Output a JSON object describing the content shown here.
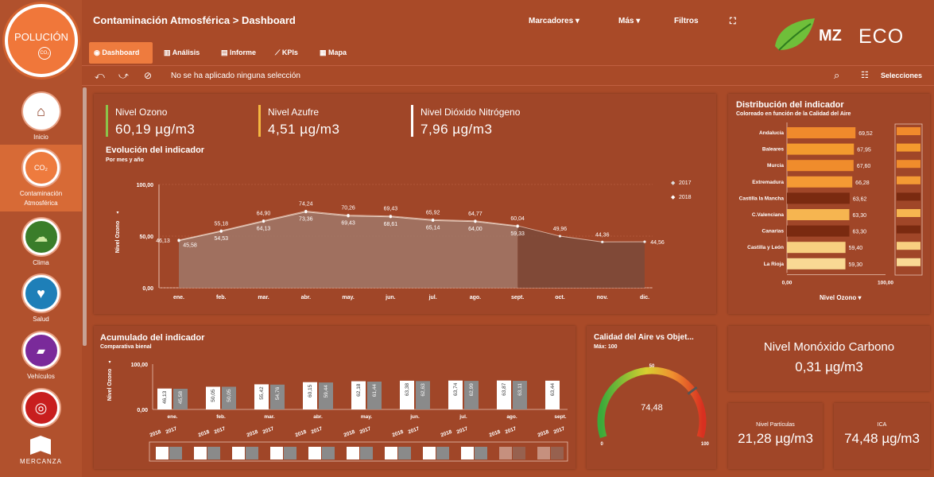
{
  "app": {
    "logo_text": "POLUCIÓN",
    "logo_sub": "CO₂",
    "brand_logo": "MZ",
    "brand_eco": "ECO",
    "footer_logo": "MERCANZA"
  },
  "header": {
    "title": "Contaminación Atmosférica > Dashboard",
    "menu": {
      "bookmarks": "Marcadores",
      "more": "Más",
      "filters": "Filtros"
    }
  },
  "tabs": [
    {
      "label": "Dashboard"
    },
    {
      "label": "Análisis"
    },
    {
      "label": "Informe"
    },
    {
      "label": "KPIs"
    },
    {
      "label": "Mapa"
    }
  ],
  "selection": {
    "status": "No se ha aplicado ninguna selección",
    "selections_label": "Selecciones"
  },
  "sidebar": [
    {
      "label": "Inicio"
    },
    {
      "label": "Contaminación Atmosférica"
    },
    {
      "label": "Clima"
    },
    {
      "label": "Salud"
    },
    {
      "label": "Vehículos"
    }
  ],
  "kpis": [
    {
      "label": "Nivel Ozono",
      "value": "60,19 µg/m3",
      "color": "#8bc34a"
    },
    {
      "label": "Nivel Azufre",
      "value": "4,51 µg/m3",
      "color": "#f5b840"
    },
    {
      "label": "Nivel Dióxido Nitrógeno",
      "value": "7,96 µg/m3",
      "color": "#ffffff"
    }
  ],
  "kpi_monoxide": {
    "label": "Nivel Monóxido Carbono",
    "value": "0,31 µg/m3"
  },
  "kpi_particles": {
    "label": "Nivel Partículas",
    "value": "21,28 µg/m3"
  },
  "kpi_ica": {
    "label": "ICA",
    "value": "74,48 µg/m3"
  },
  "chart_data": [
    {
      "type": "area",
      "title": "Evolución del indicador",
      "subtitle": "Por mes y año",
      "ylabel": "Nivel Ozono",
      "ylim": [
        0,
        100
      ],
      "yticks": [
        "0,00",
        "50,00",
        "100,00"
      ],
      "categories": [
        "ene.",
        "feb.",
        "mar.",
        "abr.",
        "may.",
        "jun.",
        "jul.",
        "ago.",
        "sept.",
        "oct.",
        "nov.",
        "dic."
      ],
      "series": [
        {
          "name": "2017",
          "values": [
            46.13,
            55.18,
            64.9,
            74.24,
            70.26,
            69.43,
            65.92,
            64.77,
            60.04,
            49.96,
            44.36,
            44.56
          ],
          "labels": [
            "46,13",
            "55,18",
            "64,90",
            "74,24",
            "70,26",
            "69,43",
            "65,92",
            "64,77",
            "60,04",
            "49,96",
            "44,36",
            "44,56"
          ]
        },
        {
          "name": "2018",
          "values": [
            45.58,
            54.53,
            64.13,
            73.36,
            69.43,
            68.61,
            65.14,
            64.0,
            59.33,
            null,
            null,
            null
          ],
          "labels": [
            "45,58",
            "54,53",
            "64,13",
            "73,36",
            "69,43",
            "68,61",
            "65,14",
            "64,00",
            "59,33",
            "",
            "",
            ""
          ]
        }
      ]
    },
    {
      "type": "bar",
      "title": "Distribución del indicador",
      "subtitle": "Coloreado en función de la Calidad del Aire",
      "xlabel": "Nivel Ozono",
      "xlim": [
        0,
        100
      ],
      "xticks": [
        "0,00",
        "100,00"
      ],
      "categories": [
        "Andalucía",
        "Baleares",
        "Murcia",
        "Extremadura",
        "Castilla la Mancha",
        "C.Valenciana",
        "Canarias",
        "Castilla y León",
        "La Rioja"
      ],
      "values": [
        69.52,
        67.95,
        67.6,
        66.28,
        63.62,
        63.3,
        63.3,
        59.4,
        59.3
      ],
      "labels": [
        "69,52",
        "67,95",
        "67,60",
        "66,28",
        "63,62",
        "63,30",
        "63,30",
        "59,40",
        "59,30"
      ],
      "colors": [
        "#f08a2c",
        "#f39a2e",
        "#f08c2c",
        "#f49a34",
        "#7a2a10",
        "#f6b550",
        "#7a2a10",
        "#f8d080",
        "#f9d994"
      ]
    },
    {
      "type": "bar",
      "title": "Acumulado del indicador",
      "subtitle": "Comparativa bienal",
      "ylabel": "Nivel Ozono",
      "ylim": [
        0,
        100
      ],
      "yticks": [
        "0,00",
        "100,00"
      ],
      "categories": [
        "ene.",
        "feb.",
        "mar.",
        "abr.",
        "may.",
        "jun.",
        "jul.",
        "ago.",
        "sept."
      ],
      "series": [
        {
          "name": "2018",
          "values": [
            46.13,
            50.05,
            55.42,
            60.15,
            62.18,
            63.38,
            63.74,
            63.87,
            63.44
          ],
          "labels": [
            "46,13",
            "50,05",
            "55,42",
            "60,15",
            "62,18",
            "63,38",
            "63,74",
            "63,87",
            "63,44"
          ],
          "color": "#ffffff"
        },
        {
          "name": "2017",
          "values": [
            45.58,
            50.05,
            54.76,
            59.44,
            61.44,
            62.63,
            62.99,
            63.11,
            null
          ],
          "labels": [
            "45,58",
            "50,05",
            "54,76",
            "59,44",
            "61,44",
            "62,63",
            "62,99",
            "63,11",
            ""
          ],
          "color": "#8a8a8a"
        }
      ],
      "year_labels": [
        "2018",
        "2017"
      ]
    },
    {
      "type": "gauge",
      "title": "Calidad del Aire vs Objet...",
      "subtitle": "Máx: 100",
      "min": 0,
      "max": 100,
      "mid_label": "50",
      "min_label": "0",
      "max_label": "100",
      "value": 74.48,
      "value_label": "74,48"
    }
  ]
}
